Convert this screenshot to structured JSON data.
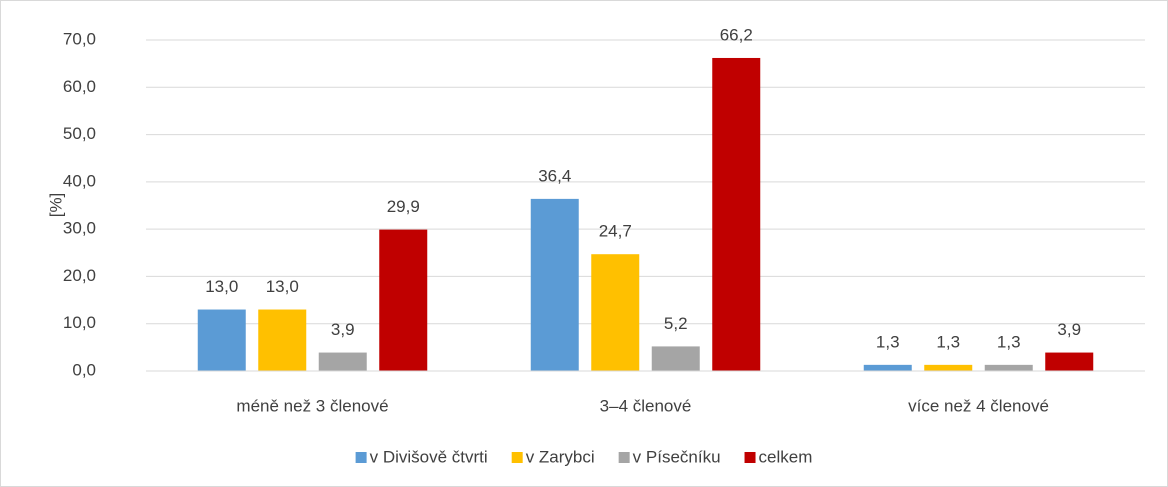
{
  "chart_data": {
    "type": "bar",
    "y_label": "[%]",
    "categories": [
      "méně než 3 členové",
      "3–4 členové",
      "více než 4 členové"
    ],
    "series": [
      {
        "name": "v Divišově čtvrti",
        "color": "#5b9bd5",
        "values": [
          13.0,
          36.4,
          1.3
        ],
        "value_labels": [
          "13,0",
          "36,4",
          "1,3"
        ]
      },
      {
        "name": "v Zarybci",
        "color": "#ffc000",
        "values": [
          13.0,
          24.7,
          1.3
        ],
        "value_labels": [
          "13,0",
          "24,7",
          "1,3"
        ]
      },
      {
        "name": "v Písečníku",
        "color": "#a5a5a5",
        "values": [
          3.9,
          5.2,
          1.3
        ],
        "value_labels": [
          "3,9",
          "5,2",
          "1,3"
        ]
      },
      {
        "name": "celkem",
        "color": "#c00000",
        "values": [
          29.9,
          66.2,
          3.9
        ],
        "value_labels": [
          "29,9",
          "66,2",
          "3,9"
        ]
      }
    ],
    "ylim": [
      0,
      70
    ],
    "yticks": [
      {
        "value": 0,
        "label": "0,0"
      },
      {
        "value": 10,
        "label": "10,0"
      },
      {
        "value": 20,
        "label": "20,0"
      },
      {
        "value": 30,
        "label": "30,0"
      },
      {
        "value": 40,
        "label": "40,0"
      },
      {
        "value": 50,
        "label": "50,0"
      },
      {
        "value": 60,
        "label": "60,0"
      },
      {
        "value": 70,
        "label": "70,0"
      }
    ],
    "grid": true,
    "legend": "bottom"
  }
}
